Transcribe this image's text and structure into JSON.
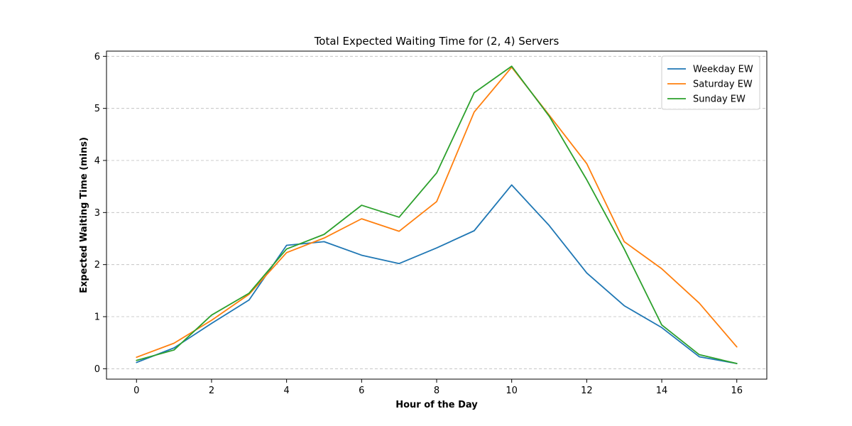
{
  "chart_data": {
    "type": "line",
    "title": "Total Expected Waiting Time for (2, 4) Servers",
    "xlabel": "Hour of the Day",
    "ylabel": "Expected Waiting Time (mins)",
    "x": [
      0,
      1,
      2,
      3,
      4,
      5,
      6,
      7,
      8,
      9,
      10,
      11,
      12,
      13,
      14,
      15,
      16
    ],
    "xlim": [
      -0.8,
      16.8
    ],
    "ylim": [
      -0.2,
      6.1
    ],
    "xticks": [
      0,
      2,
      4,
      6,
      8,
      10,
      12,
      14,
      16
    ],
    "yticks": [
      0,
      1,
      2,
      3,
      4,
      5,
      6
    ],
    "grid": "y-dashed",
    "legend_position": "top-right",
    "series": [
      {
        "name": "Weekday EW",
        "color": "#1f77b4",
        "values": [
          0.12,
          0.4,
          0.87,
          1.32,
          2.37,
          2.44,
          2.18,
          2.02,
          2.32,
          2.65,
          3.53,
          2.75,
          1.84,
          1.21,
          0.79,
          0.23,
          0.1
        ]
      },
      {
        "name": "Saturday EW",
        "color": "#ff7f0e",
        "values": [
          0.22,
          0.49,
          0.93,
          1.43,
          2.23,
          2.51,
          2.88,
          2.64,
          3.21,
          4.93,
          5.79,
          4.87,
          3.94,
          2.44,
          1.92,
          1.26,
          0.42
        ]
      },
      {
        "name": "Sunday EW",
        "color": "#2ca02c",
        "values": [
          0.16,
          0.36,
          1.03,
          1.45,
          2.3,
          2.58,
          3.14,
          2.91,
          3.76,
          5.3,
          5.81,
          4.85,
          3.63,
          2.3,
          0.84,
          0.27,
          0.1
        ]
      }
    ]
  }
}
